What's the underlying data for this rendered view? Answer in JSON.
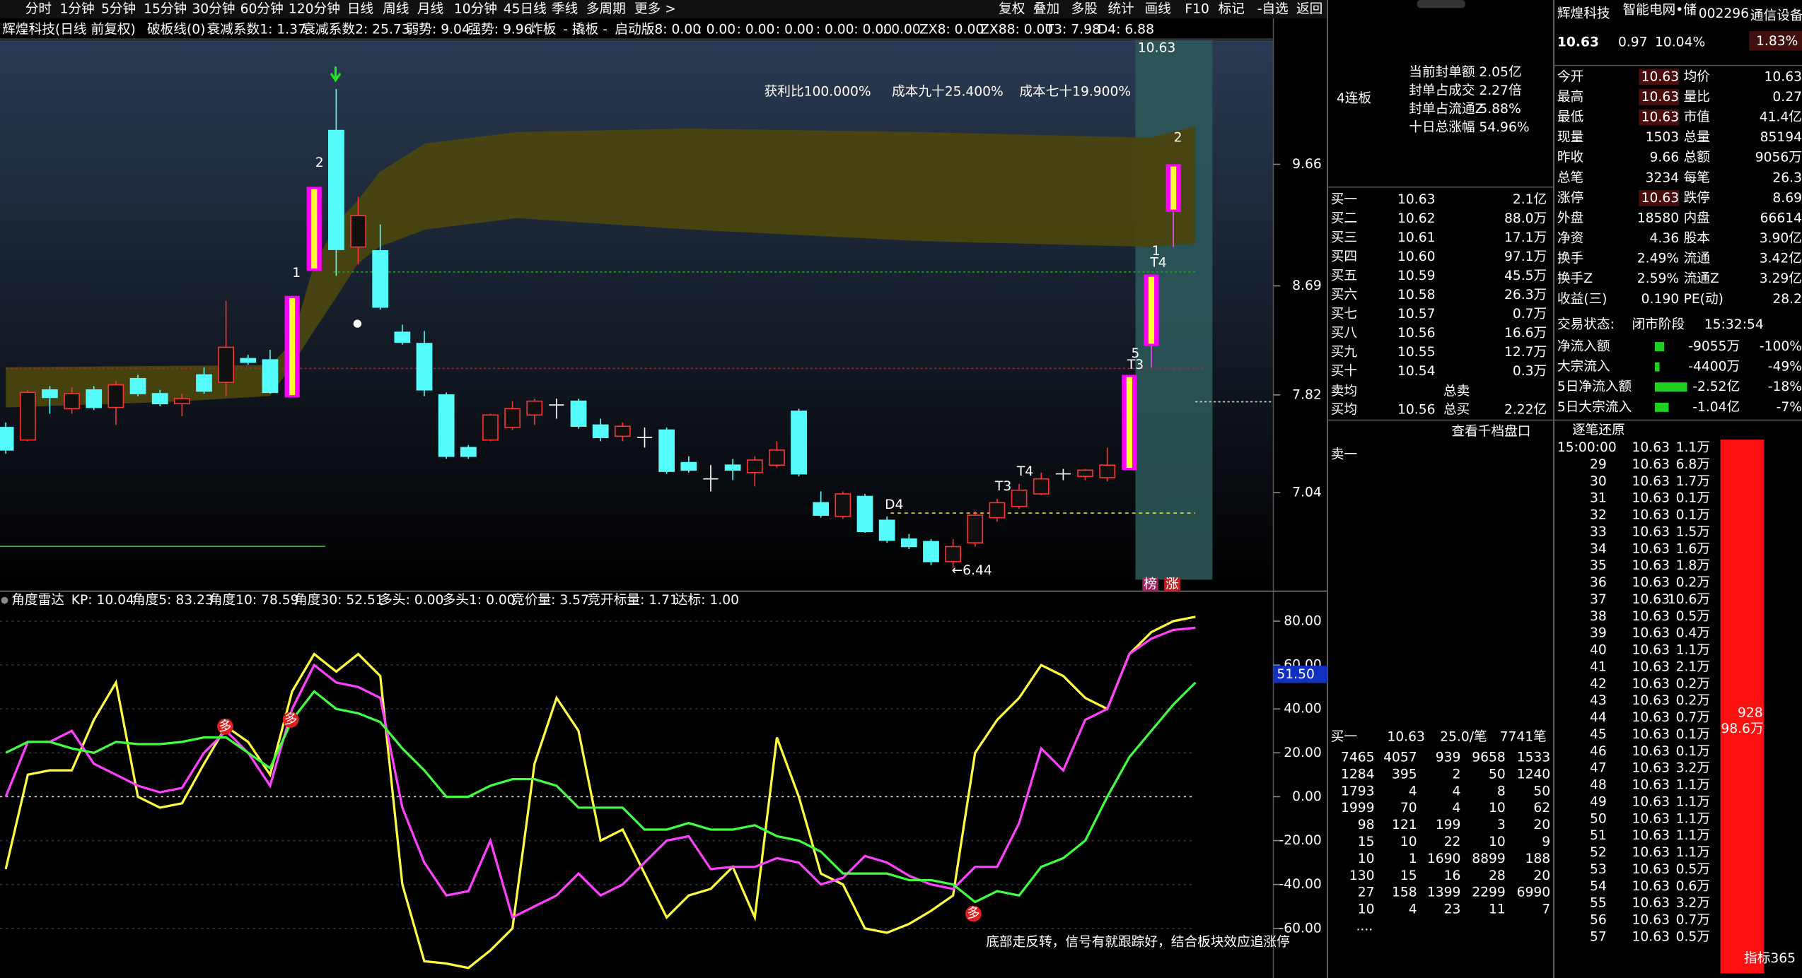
{
  "toolbar": {
    "periods": [
      "分时",
      "1分钟",
      "5分钟",
      "15分钟",
      "30分钟",
      "60分钟",
      "120分钟",
      "日线",
      "周线",
      "月线",
      "10分钟",
      "45日线",
      "季线",
      "多周期",
      "更多 >"
    ],
    "tools": [
      "复权",
      "叠加",
      "多股",
      "统计",
      "画线",
      "F10",
      "标记",
      "-自选",
      "返回"
    ]
  },
  "info_bar": [
    {
      "text": "辉煌科技(日线 前复权)",
      "color": "#ffffff"
    },
    {
      "text": "破板线(0)",
      "color": "#ffffff"
    },
    {
      "text": "衰减系数1: 1.37",
      "color": "#ffffff"
    },
    {
      "text": "衰减系数2: 25.73",
      "color": "#ffff40"
    },
    {
      "text": "弱势: 9.04",
      "color": "#ff3232"
    },
    {
      "text": "强势: 9.96",
      "color": "#40ff40"
    },
    {
      "text": "炸板",
      "color": "#ff40ff"
    },
    {
      "text": "- 撬板 -",
      "color": "#40ff40"
    },
    {
      "text": "启动版8: 0.00",
      "color": "#ffffff"
    },
    {
      "text": ": 0.00",
      "color": "#ffff40"
    },
    {
      "text": ": 0.00",
      "color": "#ff3232"
    },
    {
      "text": ": 0.00",
      "color": "#ffffff"
    },
    {
      "text": ": 0.00",
      "color": "#ffffff"
    },
    {
      "text": ": 0.00",
      "color": "#ffffff"
    },
    {
      "text": ": 0.00",
      "color": "#ffffff"
    },
    {
      "text": "ZX8: 0.00",
      "color": "#ffff40"
    },
    {
      "text": "ZX88: 0.00",
      "color": "#ff40ff"
    },
    {
      "text": "T3: 7.98",
      "color": "#ffff40"
    },
    {
      "text": "D4: 6.88",
      "color": "#ffff40"
    }
  ],
  "kline": {
    "ylim": [
      6.3,
      10.65
    ],
    "yticks": [
      9.66,
      8.69,
      7.82,
      7.04
    ],
    "candles": [
      {
        "o": 7.56,
        "h": 7.6,
        "l": 7.35,
        "c": 7.38,
        "color": "#54fcfc"
      },
      {
        "o": 7.46,
        "h": 7.86,
        "l": 7.45,
        "c": 7.84,
        "color": "#ff3232"
      },
      {
        "o": 7.86,
        "h": 7.89,
        "l": 7.67,
        "c": 7.8,
        "color": "#54fcfc"
      },
      {
        "o": 7.71,
        "h": 7.88,
        "l": 7.67,
        "c": 7.83,
        "color": "#ff3232"
      },
      {
        "o": 7.86,
        "h": 7.89,
        "l": 7.7,
        "c": 7.72,
        "color": "#54fcfc"
      },
      {
        "o": 7.72,
        "h": 7.93,
        "l": 7.58,
        "c": 7.9,
        "color": "#ff3232"
      },
      {
        "o": 7.95,
        "h": 7.98,
        "l": 7.81,
        "c": 7.83,
        "color": "#54fcfc"
      },
      {
        "o": 7.83,
        "h": 7.86,
        "l": 7.73,
        "c": 7.75,
        "color": "#54fcfc"
      },
      {
        "o": 7.75,
        "h": 7.83,
        "l": 7.65,
        "c": 7.79,
        "color": "#ff3232"
      },
      {
        "o": 7.98,
        "h": 8.04,
        "l": 7.83,
        "c": 7.85,
        "color": "#54fcfc"
      },
      {
        "o": 7.92,
        "h": 8.57,
        "l": 7.81,
        "c": 8.2,
        "color": "#ff3232"
      },
      {
        "o": 8.11,
        "h": 8.14,
        "l": 8.06,
        "c": 8.08,
        "color": "#54fcfc"
      },
      {
        "o": 8.1,
        "h": 8.18,
        "l": 7.83,
        "c": 7.84,
        "color": "#54fcfc"
      },
      {
        "o": 7.8,
        "h": 8.61,
        "l": 7.8,
        "c": 8.61,
        "color": "#ff00ff"
      },
      {
        "o": 8.81,
        "h": 9.48,
        "l": 8.81,
        "c": 9.48,
        "color": "#ff00ff"
      },
      {
        "o": 9.93,
        "h": 10.26,
        "l": 8.77,
        "c": 8.98,
        "color": "#54fcfc"
      },
      {
        "o": 9.0,
        "h": 9.4,
        "l": 8.86,
        "c": 9.25,
        "color": "#ff3232"
      },
      {
        "o": 8.97,
        "h": 9.18,
        "l": 8.5,
        "c": 8.52,
        "color": "#54fcfc"
      },
      {
        "o": 8.32,
        "h": 8.38,
        "l": 8.22,
        "c": 8.24,
        "color": "#54fcfc"
      },
      {
        "o": 8.23,
        "h": 8.33,
        "l": 7.81,
        "c": 7.86,
        "color": "#54fcfc"
      },
      {
        "o": 7.82,
        "h": 7.84,
        "l": 7.31,
        "c": 7.33,
        "color": "#54fcfc"
      },
      {
        "o": 7.4,
        "h": 7.42,
        "l": 7.31,
        "c": 7.33,
        "color": "#54fcfc"
      },
      {
        "o": 7.46,
        "h": 7.67,
        "l": 7.45,
        "c": 7.66,
        "color": "#ff3232"
      },
      {
        "o": 7.56,
        "h": 7.77,
        "l": 7.54,
        "c": 7.71,
        "color": "#ff3232"
      },
      {
        "o": 7.66,
        "h": 7.79,
        "l": 7.58,
        "c": 7.77,
        "color": "#ff3232"
      },
      {
        "o": 7.74,
        "h": 7.79,
        "l": 7.63,
        "c": 7.74,
        "color": "#ffffff"
      },
      {
        "o": 7.77,
        "h": 7.79,
        "l": 7.55,
        "c": 7.57,
        "color": "#54fcfc"
      },
      {
        "o": 7.58,
        "h": 7.63,
        "l": 7.45,
        "c": 7.48,
        "color": "#54fcfc"
      },
      {
        "o": 7.49,
        "h": 7.6,
        "l": 7.45,
        "c": 7.57,
        "color": "#ff3232"
      },
      {
        "o": 7.48,
        "h": 7.56,
        "l": 7.4,
        "c": 7.48,
        "color": "#ffffff"
      },
      {
        "o": 7.54,
        "h": 7.56,
        "l": 7.19,
        "c": 7.21,
        "color": "#54fcfc"
      },
      {
        "o": 7.28,
        "h": 7.33,
        "l": 7.2,
        "c": 7.22,
        "color": "#54fcfc"
      },
      {
        "o": 7.15,
        "h": 7.26,
        "l": 7.05,
        "c": 7.15,
        "color": "#ffffff"
      },
      {
        "o": 7.26,
        "h": 7.31,
        "l": 7.14,
        "c": 7.22,
        "color": "#54fcfc"
      },
      {
        "o": 7.2,
        "h": 7.33,
        "l": 7.09,
        "c": 7.3,
        "color": "#ff3232"
      },
      {
        "o": 7.26,
        "h": 7.45,
        "l": 7.24,
        "c": 7.38,
        "color": "#ff3232"
      },
      {
        "o": 7.69,
        "h": 7.71,
        "l": 7.17,
        "c": 7.19,
        "color": "#54fcfc"
      },
      {
        "o": 6.96,
        "h": 7.05,
        "l": 6.84,
        "c": 6.86,
        "color": "#54fcfc"
      },
      {
        "o": 6.85,
        "h": 7.05,
        "l": 6.83,
        "c": 7.03,
        "color": "#ff3232"
      },
      {
        "o": 7.01,
        "h": 7.03,
        "l": 6.72,
        "c": 6.73,
        "color": "#54fcfc"
      },
      {
        "o": 6.82,
        "h": 6.85,
        "l": 6.64,
        "c": 6.66,
        "color": "#54fcfc"
      },
      {
        "o": 6.67,
        "h": 6.71,
        "l": 6.59,
        "c": 6.61,
        "color": "#54fcfc"
      },
      {
        "o": 6.65,
        "h": 6.67,
        "l": 6.46,
        "c": 6.49,
        "color": "#54fcfc"
      },
      {
        "o": 6.49,
        "h": 6.67,
        "l": 6.44,
        "c": 6.61,
        "color": "#ff3232"
      },
      {
        "o": 6.64,
        "h": 6.89,
        "l": 6.61,
        "c": 6.86,
        "color": "#ff3232"
      },
      {
        "o": 6.84,
        "h": 6.99,
        "l": 6.81,
        "c": 6.96,
        "color": "#ff3232"
      },
      {
        "o": 6.93,
        "h": 7.11,
        "l": 6.91,
        "c": 7.06,
        "color": "#ff3232"
      },
      {
        "o": 7.03,
        "h": 7.2,
        "l": 7.02,
        "c": 7.15,
        "color": "#ff3232"
      },
      {
        "o": 7.19,
        "h": 7.23,
        "l": 7.14,
        "c": 7.19,
        "color": "#ffffff"
      },
      {
        "o": 7.17,
        "h": 7.23,
        "l": 7.14,
        "c": 7.22,
        "color": "#ff3232"
      },
      {
        "o": 7.16,
        "h": 7.4,
        "l": 7.13,
        "c": 7.26,
        "color": "#ff3232"
      },
      {
        "o": 7.22,
        "h": 7.98,
        "l": 7.22,
        "c": 7.98,
        "color": "#ff00ff"
      },
      {
        "o": 8.21,
        "h": 8.78,
        "l": 8.04,
        "c": 8.78,
        "color": "#ff00ff"
      },
      {
        "o": 9.28,
        "h": 9.66,
        "l": 9.0,
        "c": 9.66,
        "color": "#ff00ff"
      }
    ],
    "annotations": [
      {
        "text": "获利比100.000%",
        "color": "#ffffff"
      },
      {
        "text": "成本九十25.400%",
        "color": "#ff40ff"
      },
      {
        "text": "成本七十19.900%",
        "color": "#ffff40"
      }
    ],
    "high_label": "10.63",
    "low_label": "←6.44",
    "marks": [
      "D4",
      "T3",
      "T4",
      "5",
      "T3",
      "T4",
      "1",
      "2",
      "1",
      "2"
    ],
    "badges": [
      "榜",
      "涨"
    ]
  },
  "indicator": {
    "title": "角度雷达",
    "params": [
      {
        "text": "KP: 10.04",
        "color": "#ffffff"
      },
      {
        "text": "角度5: 83.23",
        "color": "#ffff40"
      },
      {
        "text": "角度10: 78.59",
        "color": "#ff40ff"
      },
      {
        "text": "角度30: 52.51",
        "color": "#40ff40"
      },
      {
        "text": "多头: 0.00",
        "color": "#ffffff"
      },
      {
        "text": "多头1: 0.00",
        "color": "#4040ff"
      },
      {
        "text": "竞价量: 3.57",
        "color": "#ffffff"
      },
      {
        "text": "竞开标量: 1.71",
        "color": "#ffff40"
      },
      {
        "text": "达标: 1.00",
        "color": "#ff40ff"
      }
    ],
    "ylim": [
      -80,
      90
    ],
    "yticks": [
      {
        "value": 80,
        "label": "80.00"
      },
      {
        "value": 60,
        "label": "60.00"
      },
      {
        "value": 40,
        "label": "40.00"
      },
      {
        "value": 20,
        "label": "20.00"
      },
      {
        "value": 0,
        "label": "0.00"
      },
      {
        "value": -20,
        "label": "-20.00"
      },
      {
        "value": -40,
        "label": "-40.00"
      },
      {
        "value": -60,
        "label": "-60.00"
      }
    ],
    "series": [
      {
        "color": "#ffff40",
        "values": [
          -33,
          10,
          12,
          12,
          35,
          52,
          0,
          -5,
          -3,
          15,
          32,
          25,
          10,
          48,
          65,
          57,
          65,
          55,
          -40,
          -75,
          -76,
          -78,
          -70,
          -60,
          15,
          45,
          30,
          -20,
          -15,
          -35,
          -55,
          -45,
          -42,
          -32,
          -55,
          27,
          0,
          -35,
          -40,
          -60,
          -62,
          -58,
          -52,
          -45,
          20,
          35,
          45,
          60,
          55,
          45,
          40,
          65,
          75,
          80,
          82
        ]
      },
      {
        "color": "#ff40ff",
        "values": [
          0,
          25,
          25,
          30,
          15,
          10,
          5,
          2,
          4,
          20,
          30,
          20,
          5,
          40,
          60,
          52,
          50,
          45,
          -5,
          -30,
          -45,
          -43,
          -20,
          -55,
          -50,
          -45,
          -35,
          -45,
          -40,
          -30,
          -20,
          -18,
          -33,
          -32,
          -32,
          -28,
          -30,
          -40,
          -37,
          -27,
          -30,
          -36,
          -40,
          -42,
          -32,
          -32,
          -12,
          22,
          12,
          35,
          40,
          65,
          72,
          76,
          77
        ]
      },
      {
        "color": "#40ff40",
        "values": [
          20,
          25,
          25,
          22,
          20,
          25,
          24,
          24,
          25,
          27,
          27,
          20,
          13,
          35,
          48,
          40,
          38,
          34,
          22,
          12,
          0,
          0,
          5,
          8,
          8,
          5,
          -5,
          -5,
          -5,
          -15,
          -15,
          -12,
          -15,
          -15,
          -13,
          -18,
          -20,
          -25,
          -35,
          -35,
          -35,
          -38,
          -38,
          -40,
          -48,
          -43,
          -45,
          -32,
          -28,
          -20,
          0,
          18,
          30,
          42,
          52
        ]
      }
    ],
    "current_label": "51.50",
    "signal": "多",
    "caption": "底部走反转，信号有就跟踪好，结合板块效应追涨停"
  },
  "quote": {
    "name": "辉煌科技",
    "concept": "智能电网•储",
    "code": "002296",
    "industry": "通信设备",
    "price": "10.63",
    "change": "0.97",
    "pct": "10.04%",
    "badge": "1.83%",
    "board": "4连板",
    "seal": [
      [
        "当前封单额",
        "2.05亿"
      ],
      [
        "封单占成交",
        "2.27倍"
      ],
      [
        "封单占流通Z",
        "5.88%"
      ],
      [
        "十日总涨幅",
        "54.96%"
      ]
    ],
    "stats": [
      [
        "今开",
        "10.63",
        "均价",
        "10.63"
      ],
      [
        "最高",
        "10.63",
        "量比",
        "0.27"
      ],
      [
        "最低",
        "10.63",
        "市值",
        "41.4亿"
      ],
      [
        "现量",
        "1503",
        "总量",
        "85194"
      ],
      [
        "昨收",
        "9.66",
        "总额",
        "9056万"
      ],
      [
        "总笔",
        "3234",
        "每笔",
        "26.3"
      ],
      [
        "涨停",
        "10.63",
        "跌停",
        "8.69"
      ],
      [
        "外盘",
        "18580",
        "内盘",
        "66614"
      ],
      [
        "净资",
        "4.36",
        "股本",
        "3.90亿"
      ],
      [
        "换手",
        "2.49%",
        "流通",
        "3.42亿"
      ],
      [
        "换手Z",
        "2.59%",
        "流通Z",
        "3.29亿"
      ],
      [
        "收益(三)",
        "0.190",
        "PE(动)",
        "28.2"
      ]
    ],
    "status": [
      "交易状态:",
      "闭市阶段",
      "15:32:54"
    ],
    "flows": [
      [
        "净流入额",
        "-9055万",
        "-100%"
      ],
      [
        "大宗流入",
        "-4400万",
        "-49%"
      ],
      [
        "5日净流入额",
        "-2.52亿",
        "-18%"
      ],
      [
        "5日大宗流入",
        "-1.04亿",
        "-7%"
      ]
    ],
    "book": [
      [
        "买一",
        "10.63",
        "2.1亿"
      ],
      [
        "买二",
        "10.62",
        "88.0万"
      ],
      [
        "买三",
        "10.61",
        "17.1万"
      ],
      [
        "买四",
        "10.60",
        "97.1万"
      ],
      [
        "买五",
        "10.59",
        "45.5万"
      ],
      [
        "买六",
        "10.58",
        "26.3万"
      ],
      [
        "买七",
        "10.57",
        "0.7万"
      ],
      [
        "买八",
        "10.56",
        "16.6万"
      ],
      [
        "买九",
        "10.55",
        "12.7万"
      ],
      [
        "买十",
        "10.54",
        "0.3万"
      ]
    ],
    "sell_avg": [
      "卖均",
      "总卖"
    ],
    "buy_avg": [
      "买均",
      "10.56",
      "总买",
      "2.22亿"
    ],
    "depth_link": "查看千档盘口",
    "sell_one": "卖一",
    "queue_header": [
      "买一",
      "10.63",
      "25.0/笔",
      "7741笔"
    ],
    "queue": [
      [
        "7465",
        "4057",
        "939",
        "9658",
        "1533"
      ],
      [
        "1284",
        "395",
        "2",
        "50",
        "1240"
      ],
      [
        "1793",
        "4",
        "4",
        "8",
        "50"
      ],
      [
        "1999",
        "70",
        "4",
        "10",
        "62"
      ],
      [
        "98",
        "121",
        "199",
        "3",
        "20"
      ],
      [
        "15",
        "10",
        "22",
        "10",
        "9"
      ],
      [
        "10",
        "1",
        "1690",
        "8899",
        "188"
      ],
      [
        "130",
        "15",
        "16",
        "28",
        "20"
      ],
      [
        "27",
        "158",
        "1399",
        "2299",
        "6990"
      ],
      [
        "10",
        "4",
        "23",
        "11",
        "7"
      ]
    ],
    "queue_more": "....",
    "ticks_title": "逐笔还原",
    "ticks": [
      [
        "15:00:00",
        "10.63",
        "1.1万"
      ],
      [
        "29",
        "10.63",
        "6.8万"
      ],
      [
        "30",
        "10.63",
        "1.7万"
      ],
      [
        "31",
        "10.63",
        "0.1万"
      ],
      [
        "32",
        "10.63",
        "0.1万"
      ],
      [
        "33",
        "10.63",
        "1.5万"
      ],
      [
        "34",
        "10.63",
        "1.6万"
      ],
      [
        "35",
        "10.63",
        "1.8万"
      ],
      [
        "36",
        "10.63",
        "0.2万"
      ],
      [
        "37",
        "10.63",
        "10.6万"
      ],
      [
        "38",
        "10.63",
        "0.5万"
      ],
      [
        "39",
        "10.63",
        "0.4万"
      ],
      [
        "40",
        "10.63",
        "1.1万"
      ],
      [
        "41",
        "10.63",
        "2.1万"
      ],
      [
        "42",
        "10.63",
        "0.2万"
      ],
      [
        "43",
        "10.63",
        "0.2万"
      ],
      [
        "44",
        "10.63",
        "0.7万"
      ],
      [
        "45",
        "10.63",
        "0.1万"
      ],
      [
        "46",
        "10.63",
        "0.1万"
      ],
      [
        "47",
        "10.63",
        "3.2万"
      ],
      [
        "48",
        "10.63",
        "1.1万"
      ],
      [
        "49",
        "10.63",
        "1.1万"
      ],
      [
        "50",
        "10.63",
        "1.1万"
      ],
      [
        "51",
        "10.63",
        "1.1万"
      ],
      [
        "52",
        "10.63",
        "1.1万"
      ],
      [
        "53",
        "10.63",
        "0.5万"
      ],
      [
        "54",
        "10.63",
        "0.6万"
      ],
      [
        "55",
        "10.63",
        "3.2万"
      ],
      [
        "56",
        "10.63",
        "0.7万"
      ],
      [
        "57",
        "10.63",
        "0.5万"
      ]
    ],
    "bar_count": "928",
    "bar_volume": "98.6万",
    "footer": "指标365"
  }
}
